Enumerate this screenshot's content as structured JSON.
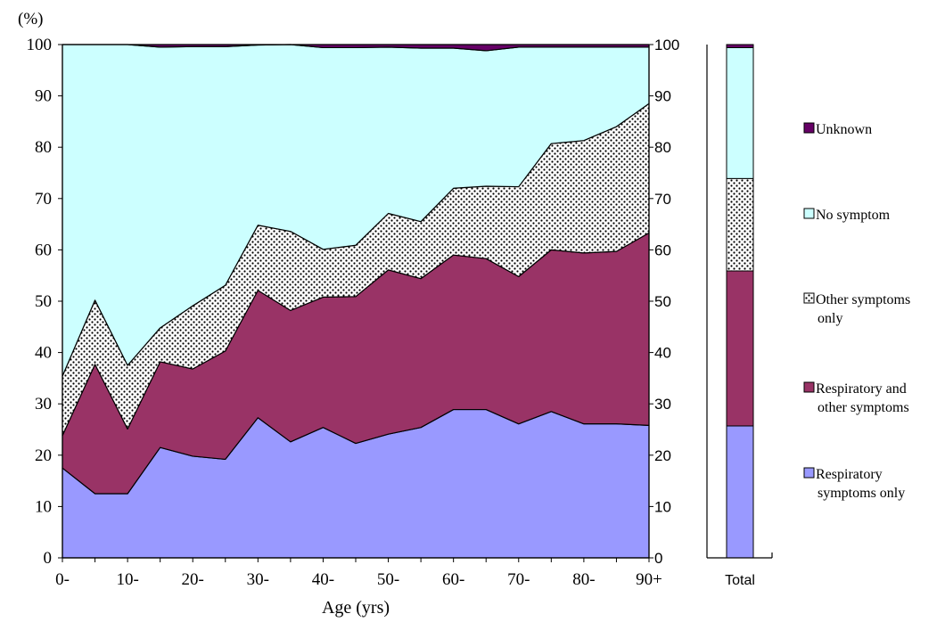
{
  "chart_data": [
    {
      "type": "area",
      "stacked": true,
      "unit_label": "(%)",
      "xlabel": "Age (yrs)",
      "ylim": [
        0,
        100
      ],
      "yticks": [
        0,
        10,
        20,
        30,
        40,
        50,
        60,
        70,
        80,
        90,
        100
      ],
      "x": [
        "0-",
        "5-",
        "10-",
        "15-",
        "20-",
        "25-",
        "30-",
        "35-",
        "40-",
        "45-",
        "50-",
        "55-",
        "60-",
        "65-",
        "70-",
        "75-",
        "80-",
        "85-",
        "90+"
      ],
      "x_tick_labels": [
        "0-",
        "10-",
        "20-",
        "30-",
        "40-",
        "50-",
        "60-",
        "70-",
        "80-",
        "90+"
      ],
      "grid": false,
      "series": [
        {
          "name": "Respiratory symptoms only",
          "color": "#9999ff",
          "pattern": "none",
          "values": [
            17.5,
            12.5,
            12.5,
            21.5,
            19.8,
            19.2,
            27.3,
            22.6,
            25.4,
            22.3,
            24.1,
            25.4,
            28.9,
            28.9,
            26.1,
            28.5,
            26.1,
            26.1,
            25.8
          ]
        },
        {
          "name": "Respiratory and other symptoms",
          "color": "#993366",
          "pattern": "none",
          "values": [
            6.3,
            25.2,
            12.6,
            16.7,
            17.0,
            21.1,
            24.8,
            25.6,
            25.4,
            28.6,
            32.0,
            29.0,
            30.1,
            29.4,
            28.7,
            31.5,
            33.3,
            33.6,
            37.5
          ]
        },
        {
          "name": "Other symptoms only",
          "color": "#ffffff",
          "pattern": "dots",
          "values": [
            11.6,
            12.5,
            12.4,
            6.6,
            12.3,
            12.8,
            12.7,
            15.4,
            9.3,
            10.0,
            11.0,
            11.1,
            13.0,
            14.1,
            17.5,
            20.7,
            21.9,
            24.3,
            25.2
          ]
        },
        {
          "name": "No symptom",
          "color": "#ccffff",
          "pattern": "none",
          "values": [
            64.6,
            49.8,
            62.5,
            54.7,
            50.5,
            46.5,
            35.1,
            36.4,
            39.3,
            38.5,
            32.4,
            33.8,
            27.3,
            26.4,
            27.2,
            18.8,
            18.2,
            15.5,
            11.0
          ]
        },
        {
          "name": "Unknown",
          "color": "#660066",
          "pattern": "none",
          "values": [
            0.0,
            0.0,
            0.0,
            0.5,
            0.4,
            0.4,
            0.1,
            0.0,
            0.6,
            0.6,
            0.5,
            0.7,
            0.7,
            1.2,
            0.5,
            0.5,
            0.5,
            0.5,
            0.5
          ]
        }
      ]
    },
    {
      "type": "bar",
      "stacked": true,
      "categories": [
        "Total"
      ],
      "ylim": [
        0,
        100
      ],
      "yticks": [
        0,
        10,
        20,
        30,
        40,
        50,
        60,
        70,
        80,
        90,
        100
      ],
      "series": [
        {
          "name": "Respiratory symptoms only",
          "values": [
            25.7
          ]
        },
        {
          "name": "Respiratory and other symptoms",
          "values": [
            30.2
          ]
        },
        {
          "name": "Other symptoms only",
          "values": [
            18.0
          ]
        },
        {
          "name": "No symptom",
          "values": [
            25.5
          ]
        },
        {
          "name": "Unknown",
          "values": [
            0.6
          ]
        }
      ]
    }
  ],
  "legend": {
    "placement": "right",
    "items": [
      {
        "lines": [
          "Unknown"
        ],
        "color": "#660066",
        "pattern": "none"
      },
      {
        "lines": [
          "No symptom"
        ],
        "color": "#ccffff",
        "pattern": "none"
      },
      {
        "lines": [
          "Other symptoms",
          "only"
        ],
        "color": "#ffffff",
        "pattern": "dots"
      },
      {
        "lines": [
          "Respiratory and",
          "other symptoms"
        ],
        "color": "#993366",
        "pattern": "none"
      },
      {
        "lines": [
          "Respiratory",
          "symptoms only"
        ],
        "color": "#9999ff",
        "pattern": "none"
      }
    ]
  }
}
